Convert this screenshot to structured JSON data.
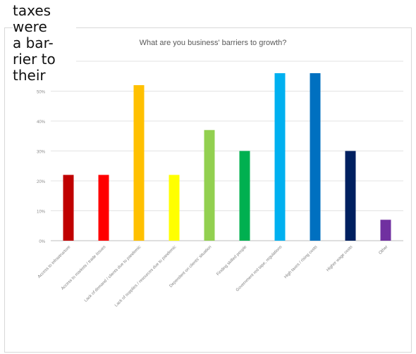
{
  "side_text": {
    "lines": [
      "taxes",
      "were",
      "a bar-",
      "rier to",
      "their"
    ]
  },
  "chart_data": {
    "type": "bar",
    "title": "What are you business' barriers to growth?",
    "xlabel": "",
    "ylabel": "",
    "ylim": [
      0,
      60
    ],
    "yticks": [
      0,
      10,
      20,
      30,
      40,
      50,
      60
    ],
    "ytick_labels": [
      "0%",
      "10%",
      "20%",
      "30%",
      "40%",
      "50%",
      "60%"
    ],
    "grid": true,
    "legend": "none",
    "categories": [
      "Access to infrastructure",
      "Access to markets / trade issues",
      "Lack of demand / clients due to pandemic",
      "Lack of supplies / resources due to pandemic",
      "Dependent on clients' situation",
      "Finding skilled people",
      "Government red tape, regulations",
      "High taxes / rising costs",
      "Higher wage costs",
      "Other"
    ],
    "values": [
      22,
      22,
      52,
      22,
      37,
      30,
      56,
      56,
      30,
      7
    ],
    "colors": [
      "#c00000",
      "#ff0000",
      "#ffc000",
      "#ffff00",
      "#92d050",
      "#00b050",
      "#00b0f0",
      "#0070c0",
      "#002060",
      "#7030a0"
    ]
  }
}
